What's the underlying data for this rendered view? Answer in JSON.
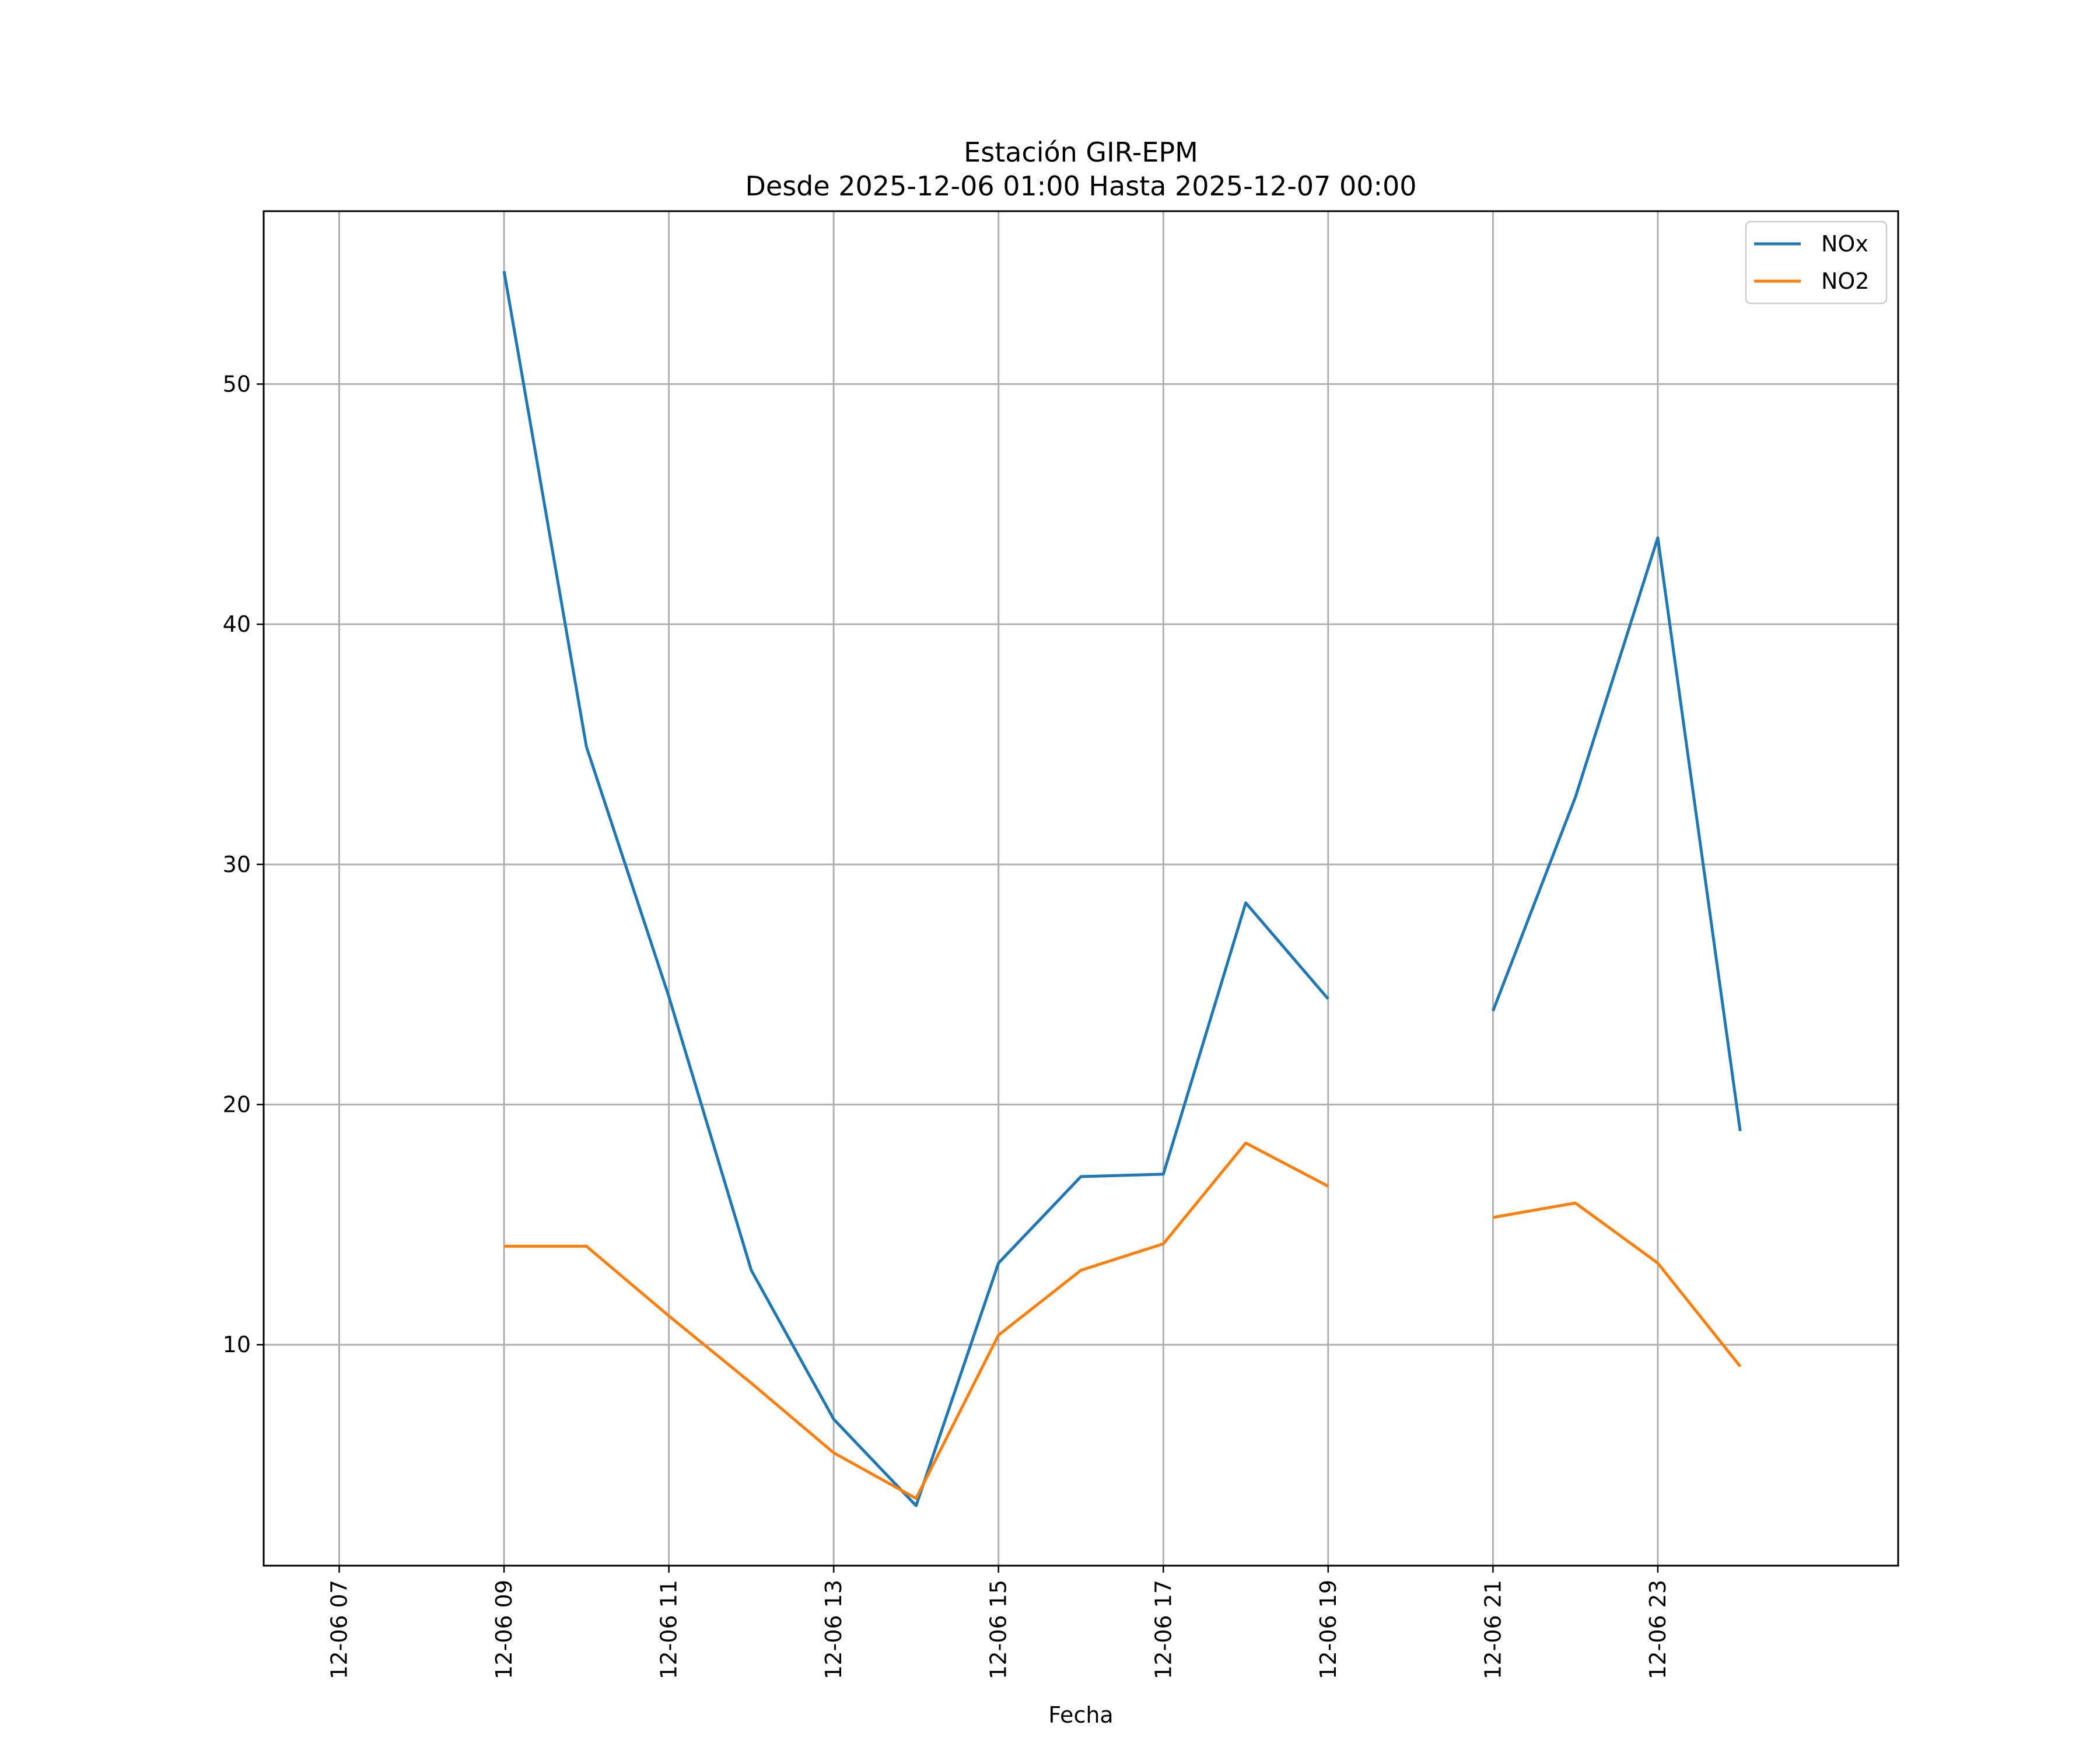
{
  "chart_data": {
    "type": "line",
    "title": "Estación GIR-EPM",
    "subtitle": "Desde 2025-12-06 01:00 Hasta 2025-12-07 00:00",
    "xlabel": "Fecha",
    "ylabel": "",
    "x": [
      "12-06 09",
      "12-06 10",
      "12-06 11",
      "12-06 12",
      "12-06 13",
      "12-06 14",
      "12-06 15",
      "12-06 16",
      "12-06 17",
      "12-06 18",
      "12-06 19",
      "12-06 20",
      "12-06 21",
      "12-06 22",
      "12-06 23",
      "12-07 00"
    ],
    "xlim": [
      "12-06 06:05",
      "12-07 01:55"
    ],
    "ylim": [
      0.8,
      57.2
    ],
    "x_ticks": [
      "12-06 07",
      "12-06 09",
      "12-06 11",
      "12-06 13",
      "12-06 15",
      "12-06 17",
      "12-06 19",
      "12-06 21",
      "12-06 23"
    ],
    "y_ticks": [
      10,
      20,
      30,
      40,
      50
    ],
    "grid": true,
    "legend_position": "top-right",
    "series": [
      {
        "name": "NOx",
        "color": "#1f77b4",
        "values": [
          54.7,
          34.9,
          24.5,
          13.1,
          6.9,
          3.3,
          13.4,
          17.0,
          17.1,
          28.4,
          24.4,
          null,
          23.9,
          32.8,
          43.6,
          18.9
        ]
      },
      {
        "name": "NO2",
        "color": "#ff7f0e",
        "values": [
          14.1,
          14.1,
          11.2,
          8.4,
          5.5,
          3.6,
          10.4,
          13.1,
          14.2,
          18.4,
          16.6,
          null,
          15.3,
          15.9,
          13.4,
          9.1
        ]
      }
    ]
  }
}
